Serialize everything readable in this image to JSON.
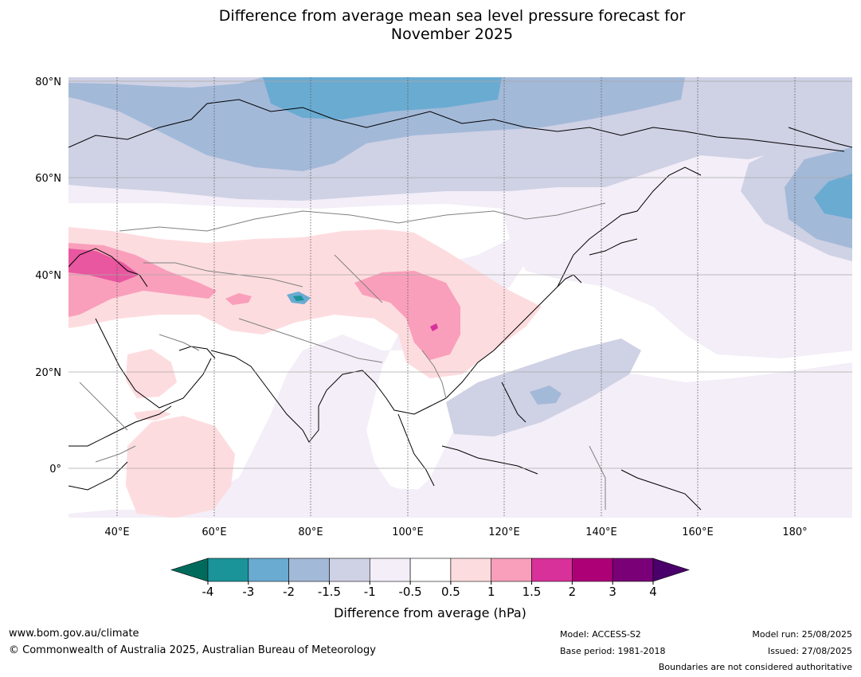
{
  "title": {
    "line1": "Difference from average mean sea level pressure forecast for",
    "line2": "November 2025"
  },
  "map": {
    "lat_labels": [
      "80°N",
      "60°N",
      "40°N",
      "20°N",
      "0°"
    ],
    "lon_labels": [
      "40°E",
      "60°E",
      "80°E",
      "100°E",
      "120°E",
      "140°E",
      "160°E",
      "180°"
    ]
  },
  "colorbar": {
    "ticks": [
      "-4",
      "-3",
      "-2",
      "-1.5",
      "-1",
      "-0.5",
      "0.5",
      "1",
      "1.5",
      "2",
      "3",
      "4"
    ],
    "colors": {
      "under": "#006b5c",
      "bins": [
        "#1a9399",
        "#6aabd2",
        "#a3b9d8",
        "#cfd1e5",
        "#f3eef7",
        "#ffffff",
        "#fddcdf",
        "#f99fbb",
        "#d9319a",
        "#ad0077",
        "#7a0077"
      ],
      "over": "#49006a"
    },
    "label": "Difference from average (hPa)"
  },
  "footer": {
    "url": "www.bom.gov.au/climate",
    "copyright": "© Commonwealth of Australia 2025, Australian Bureau of Meteorology",
    "model": "Model: ACCESS-S2",
    "base_period": "Base period: 1981-2018",
    "model_run": "Model run: 25/08/2025",
    "issued": "Issued: 27/08/2025",
    "disclaimer": "Boundaries are not considered authoritative"
  }
}
